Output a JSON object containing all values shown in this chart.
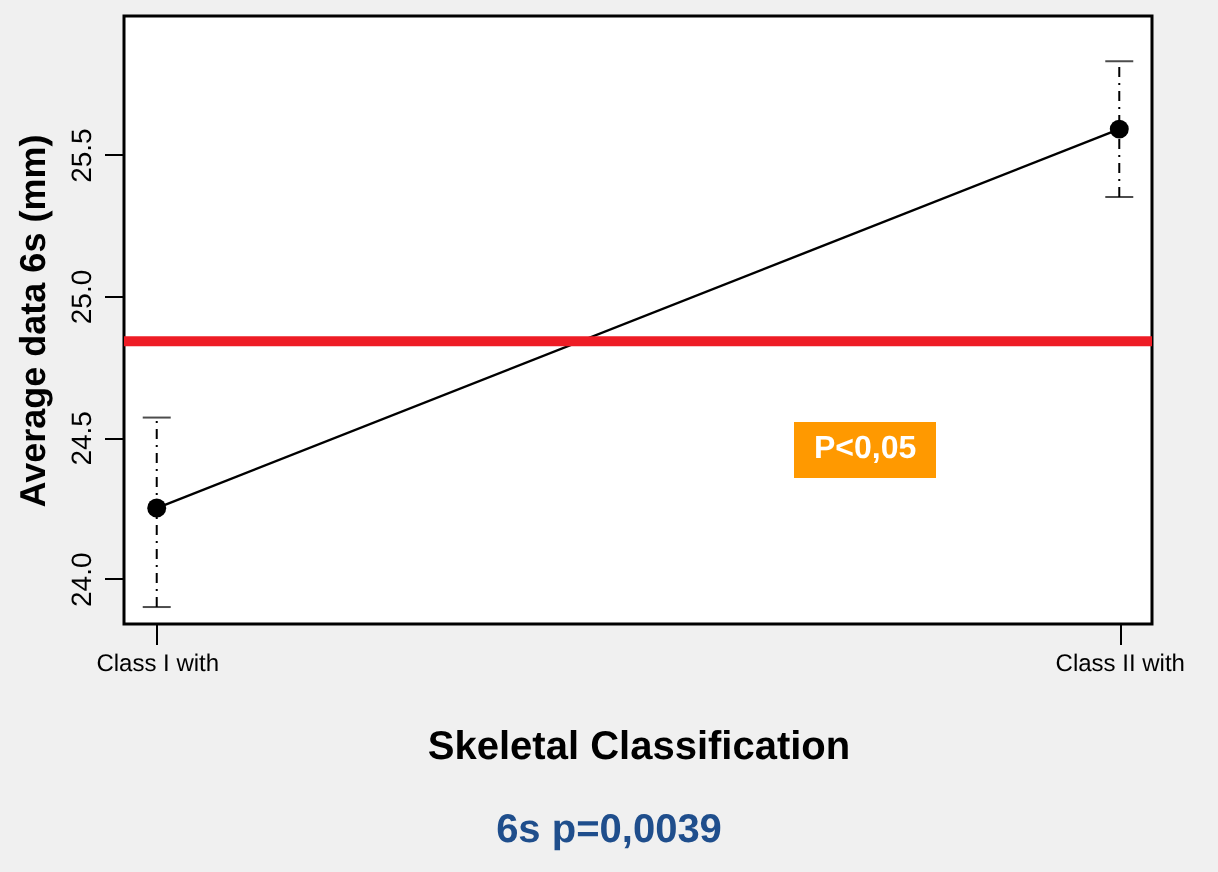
{
  "chart_data": {
    "type": "line",
    "xlabel": "Skeletal Classification",
    "ylabel": "Average data 6s (mm)",
    "categories": [
      "Class I with",
      "Class II with"
    ],
    "values": [
      24.25,
      25.59
    ],
    "errors": [
      [
        23.9,
        24.57
      ],
      [
        25.35,
        25.83
      ]
    ],
    "color": "#000000",
    "marker": "circle",
    "line_style": "solid",
    "ylim": [
      23.84,
      25.99
    ],
    "yticks": [
      {
        "value": 24,
        "label": "24.0"
      },
      24.5,
      {
        "value": 25,
        "label": "25.0"
      },
      25.5
    ],
    "ref_lines": [
      {
        "axis": "y",
        "value": 24.84,
        "color": "#ee1c25"
      }
    ],
    "annotations": [
      "P<0,05",
      "6s p=0,0039"
    ]
  }
}
